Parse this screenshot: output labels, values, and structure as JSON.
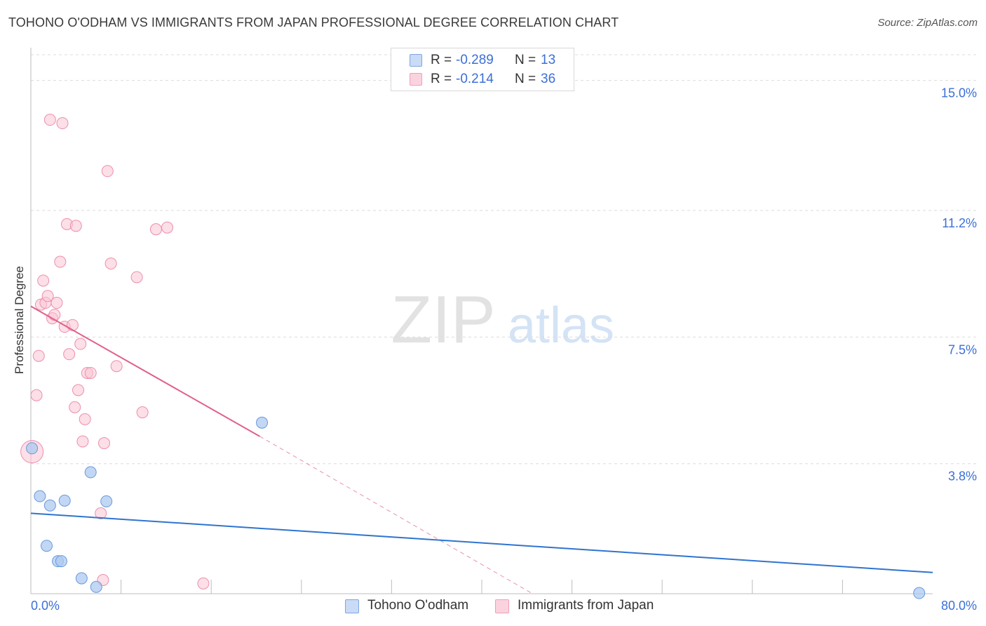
{
  "chart_data": {
    "type": "scatter",
    "title": "TOHONO O'ODHAM VS IMMIGRANTS FROM JAPAN PROFESSIONAL DEGREE CORRELATION CHART",
    "source": "Source: ZipAtlas.com",
    "xlabel": "",
    "ylabel": "Professional Degree",
    "xlim": [
      0,
      80
    ],
    "ylim": [
      0,
      15.75
    ],
    "y_ticks": [
      3.8,
      7.5,
      11.2,
      15.0
    ],
    "y_tick_labels": [
      "3.8%",
      "7.5%",
      "11.2%",
      "15.0%"
    ],
    "x_tick_labels": [
      "0.0%",
      "80.0%"
    ],
    "x_minor_ticks": [
      8,
      16,
      24,
      32,
      40,
      48,
      56,
      64,
      72
    ],
    "grid": true,
    "watermark": {
      "zip": "ZIP",
      "atlas": "atlas"
    },
    "series": [
      {
        "name": "Tohono O'odham",
        "color": "#aec9f0",
        "stroke": "#6a98dc",
        "line_color": "#2f74d0",
        "R": "-0.289",
        "N": "13",
        "trend": {
          "x0": 0,
          "y0": 2.35,
          "x1": 80,
          "y1": 0.62
        },
        "points": [
          [
            0.1,
            4.25
          ],
          [
            0.8,
            2.85
          ],
          [
            1.4,
            1.4
          ],
          [
            1.7,
            2.58
          ],
          [
            2.4,
            0.95
          ],
          [
            2.7,
            0.95
          ],
          [
            3.0,
            2.72
          ],
          [
            4.5,
            0.45
          ],
          [
            5.3,
            3.55
          ],
          [
            5.8,
            0.2
          ],
          [
            6.7,
            2.7
          ],
          [
            20.5,
            5.0
          ],
          [
            78.8,
            0.02
          ]
        ]
      },
      {
        "name": "Immigrants from Japan",
        "color": "#f9c4d3",
        "stroke": "#ec8fab",
        "line_color": "#e0608a",
        "R": "-0.214",
        "N": "36",
        "trend": {
          "x0": 0,
          "y0": 8.4,
          "x1": 20.3,
          "y1": 4.6
        },
        "trend_dashed": {
          "x0": 20.3,
          "y0": 4.6,
          "x1": 44.5,
          "y1": 0.0
        },
        "points": [
          [
            0.1,
            4.15
          ],
          [
            0.5,
            5.8
          ],
          [
            0.7,
            6.95
          ],
          [
            0.9,
            8.45
          ],
          [
            1.1,
            9.15
          ],
          [
            1.3,
            8.5
          ],
          [
            1.5,
            8.7
          ],
          [
            1.7,
            13.85
          ],
          [
            1.9,
            8.05
          ],
          [
            2.1,
            8.15
          ],
          [
            2.3,
            8.5
          ],
          [
            2.6,
            9.7
          ],
          [
            2.8,
            13.75
          ],
          [
            3.0,
            7.8
          ],
          [
            3.2,
            10.8
          ],
          [
            3.4,
            7.0
          ],
          [
            3.7,
            7.85
          ],
          [
            3.9,
            5.45
          ],
          [
            4.0,
            10.75
          ],
          [
            4.2,
            5.95
          ],
          [
            4.4,
            7.3
          ],
          [
            4.6,
            4.45
          ],
          [
            4.8,
            5.1
          ],
          [
            5.0,
            6.45
          ],
          [
            5.3,
            6.45
          ],
          [
            6.2,
            2.35
          ],
          [
            6.4,
            0.4
          ],
          [
            6.5,
            4.4
          ],
          [
            6.8,
            12.35
          ],
          [
            7.1,
            9.65
          ],
          [
            7.6,
            6.65
          ],
          [
            9.4,
            9.25
          ],
          [
            9.9,
            5.3
          ],
          [
            11.1,
            10.65
          ],
          [
            12.1,
            10.7
          ],
          [
            15.3,
            0.3
          ]
        ]
      }
    ],
    "legend_position": "top-center"
  },
  "legend": {
    "r_label": "R =",
    "n_label": "N ="
  }
}
